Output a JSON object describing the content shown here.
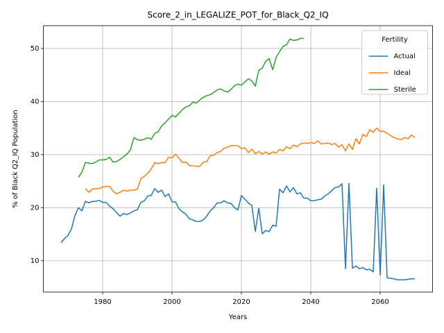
{
  "chart_data": {
    "type": "line",
    "title": "Score_2_in_LEGALIZE_POT_for_Black_Q2_IQ",
    "x_label": "Years",
    "y_label": "% of Black Q2_IQ Population",
    "legend_title": "Fertility",
    "legend_position": "upper right",
    "grid": true,
    "xlim": [
      1962.9,
      2075.1
    ],
    "ylim": [
      4.1,
      54.3
    ],
    "xticks": [
      1980,
      2000,
      2020,
      2040,
      2060
    ],
    "yticks": [
      10,
      20,
      30,
      40,
      50
    ],
    "x": [
      1968,
      1969,
      1970,
      1971,
      1972,
      1973,
      1974,
      1975,
      1976,
      1977,
      1978,
      1979,
      1980,
      1981,
      1982,
      1983,
      1984,
      1985,
      1986,
      1987,
      1988,
      1989,
      1990,
      1991,
      1992,
      1993,
      1994,
      1995,
      1996,
      1997,
      1998,
      1999,
      2000,
      2001,
      2002,
      2003,
      2004,
      2005,
      2006,
      2007,
      2008,
      2009,
      2010,
      2011,
      2012,
      2013,
      2014,
      2015,
      2016,
      2017,
      2018,
      2019,
      2020,
      2021,
      2022,
      2023,
      2024,
      2025,
      2026,
      2027,
      2028,
      2029,
      2030,
      2031,
      2032,
      2033,
      2034,
      2035,
      2036,
      2037,
      2038,
      2039,
      2040,
      2041,
      2042,
      2043,
      2044,
      2045,
      2046,
      2047,
      2048,
      2049,
      2050,
      2051,
      2052,
      2053,
      2054,
      2055,
      2056,
      2057,
      2058,
      2059,
      2060,
      2061,
      2062,
      2063,
      2064,
      2065,
      2066,
      2067,
      2068,
      2069,
      2070
    ],
    "series": [
      {
        "name": "Actual",
        "color": "#1f77b4",
        "values": [
          13.4,
          14.2,
          14.8,
          16.0,
          18.5,
          20.0,
          19.4,
          21.2,
          20.9,
          21.2,
          21.2,
          21.4,
          21.0,
          21.0,
          20.3,
          19.8,
          19.1,
          18.4,
          18.9,
          18.7,
          19.0,
          19.4,
          19.6,
          21.0,
          21.3,
          22.2,
          22.3,
          23.6,
          22.9,
          23.3,
          22.1,
          22.6,
          21.1,
          21.1,
          19.8,
          19.2,
          18.8,
          17.9,
          17.7,
          17.4,
          17.4,
          17.7,
          18.4,
          19.4,
          20.0,
          20.9,
          20.9,
          21.3,
          20.9,
          20.8,
          20.0,
          19.6,
          22.3,
          21.6,
          20.9,
          20.4,
          15.5,
          19.9,
          15.1,
          15.7,
          15.5,
          16.7,
          16.5,
          23.5,
          22.8,
          24.1,
          23.0,
          23.8,
          22.6,
          22.8,
          21.8,
          21.8,
          21.3,
          21.3,
          21.5,
          21.6,
          22.2,
          22.6,
          23.2,
          23.8,
          23.9,
          24.5,
          8.5,
          24.6,
          8.6,
          9.0,
          8.5,
          8.7,
          8.3,
          8.4,
          7.9,
          23.7,
          7.3,
          24.3,
          6.8,
          6.7,
          6.6,
          6.4,
          6.4,
          6.4,
          6.5,
          6.6,
          6.6
        ]
      },
      {
        "name": "Ideal",
        "color": "#ff7f0e",
        "values": [
          null,
          null,
          null,
          null,
          null,
          null,
          null,
          23.6,
          22.9,
          23.5,
          23.6,
          23.6,
          23.9,
          24.0,
          24.0,
          23.1,
          22.6,
          22.9,
          23.3,
          23.1,
          23.3,
          23.3,
          23.5,
          25.5,
          25.9,
          26.5,
          27.3,
          28.5,
          28.3,
          28.5,
          28.5,
          29.5,
          29.4,
          30.1,
          29.3,
          28.5,
          28.6,
          27.9,
          27.9,
          27.8,
          27.8,
          28.6,
          28.7,
          29.8,
          29.9,
          30.4,
          30.6,
          31.2,
          31.4,
          31.7,
          31.7,
          31.7,
          31.1,
          31.3,
          30.4,
          31.0,
          30.2,
          30.6,
          30.1,
          30.5,
          30.1,
          30.5,
          30.3,
          31.0,
          30.7,
          31.5,
          31.1,
          31.8,
          31.5,
          32.0,
          32.2,
          32.1,
          32.3,
          32.1,
          32.6,
          32.0,
          32.1,
          32.2,
          31.9,
          32.1,
          31.4,
          31.9,
          30.7,
          32.0,
          31.0,
          33.0,
          32.0,
          33.8,
          33.4,
          34.7,
          34.2,
          35.0,
          34.4,
          34.4,
          34.0,
          33.6,
          33.2,
          33.0,
          32.8,
          33.2,
          33.0,
          33.7,
          33.2
        ]
      },
      {
        "name": "Sterile",
        "color": "#2ca02c",
        "values": [
          null,
          null,
          null,
          null,
          null,
          25.7,
          26.7,
          28.5,
          28.4,
          28.3,
          28.6,
          29.0,
          29.0,
          29.1,
          29.5,
          28.6,
          28.7,
          29.1,
          29.6,
          30.1,
          30.9,
          33.2,
          32.8,
          32.7,
          32.9,
          33.2,
          32.9,
          34.0,
          34.3,
          35.4,
          36.0,
          36.7,
          37.4,
          37.1,
          37.8,
          38.5,
          39.0,
          39.2,
          39.9,
          39.7,
          40.3,
          40.8,
          41.1,
          41.3,
          41.7,
          42.2,
          42.4,
          42.0,
          41.8,
          42.3,
          43.0,
          43.3,
          43.1,
          43.7,
          44.3,
          43.9,
          42.9,
          45.9,
          46.3,
          47.6,
          48.1,
          46.0,
          48.3,
          49.4,
          50.4,
          50.7,
          51.8,
          51.5,
          51.6,
          51.9,
          51.9,
          null,
          null,
          null,
          null,
          null,
          null,
          null,
          null,
          null,
          null,
          null,
          null,
          null,
          null,
          null,
          null,
          null,
          null,
          null,
          null,
          null,
          null,
          null,
          null,
          null,
          null,
          null,
          null,
          null,
          null,
          null,
          null
        ]
      }
    ]
  }
}
